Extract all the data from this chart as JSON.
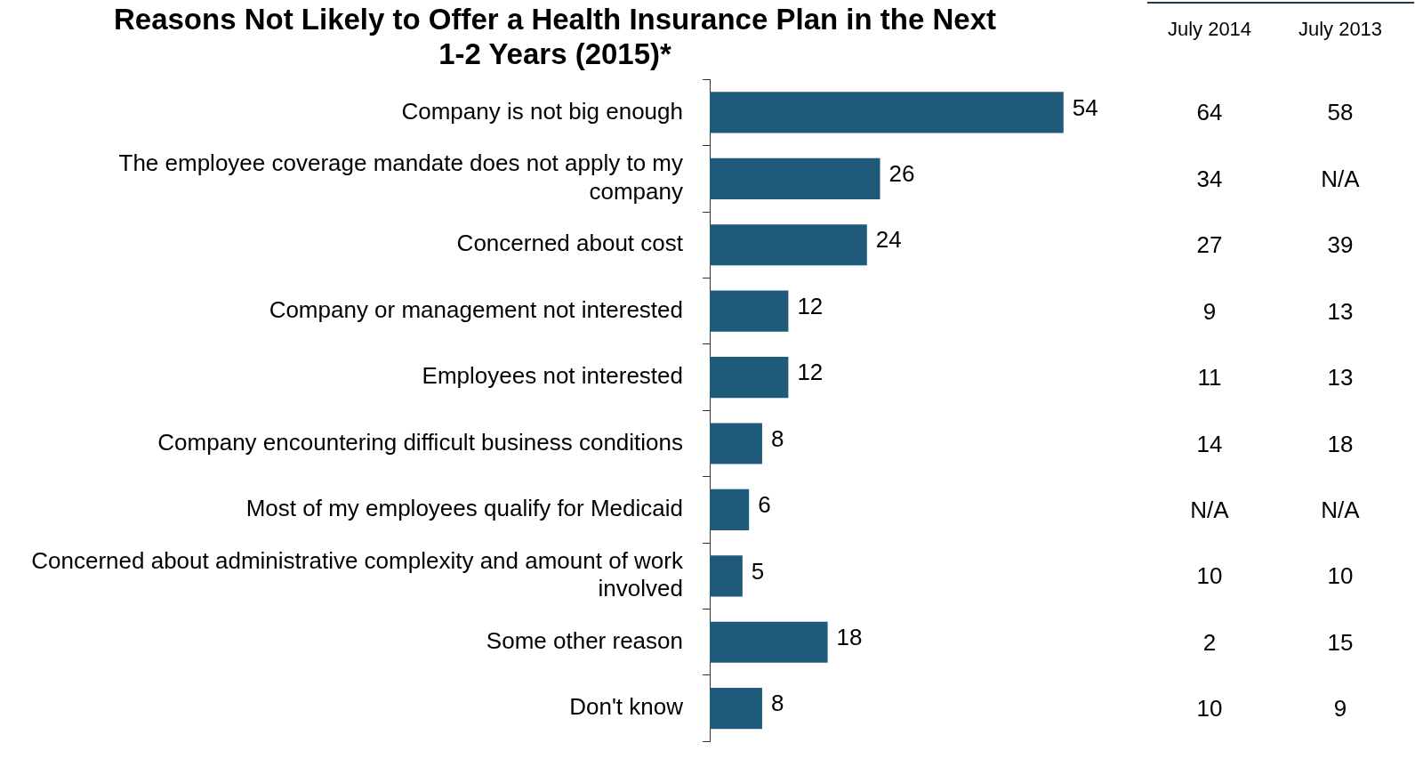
{
  "chart_data": [
    {
      "type": "bar",
      "orientation": "horizontal",
      "title": "Reasons Not Likely to Offer a Health Insurance Plan in the Next 1-2 Years (2015)*",
      "categories": [
        "Company is not big enough",
        "The employee coverage mandate does not apply to my company",
        "Concerned about cost",
        "Company or management not interested",
        "Employees not interested",
        "Company encountering difficult business conditions",
        "Most of my employees qualify for Medicaid",
        "Concerned about administrative complexity and amount of work involved",
        "Some other reason",
        "Don't know"
      ],
      "values": [
        54,
        26,
        24,
        12,
        12,
        8,
        6,
        5,
        18,
        8
      ],
      "color": "#1f5a7a",
      "data_labels": true,
      "tick_labels": "y",
      "grid": false,
      "legend": false
    },
    {
      "type": "other",
      "categories": [
        "July 2014",
        "July 2013"
      ],
      "cell_labels": [
        [
          "64",
          "58"
        ],
        [
          "34",
          "N/A"
        ],
        [
          "27",
          "39"
        ],
        [
          "9",
          "13"
        ],
        [
          "11",
          "13"
        ],
        [
          "14",
          "18"
        ],
        [
          "N/A",
          "N/A"
        ],
        [
          "10",
          "10"
        ],
        [
          "2",
          "15"
        ],
        [
          "10",
          "9"
        ]
      ]
    }
  ]
}
